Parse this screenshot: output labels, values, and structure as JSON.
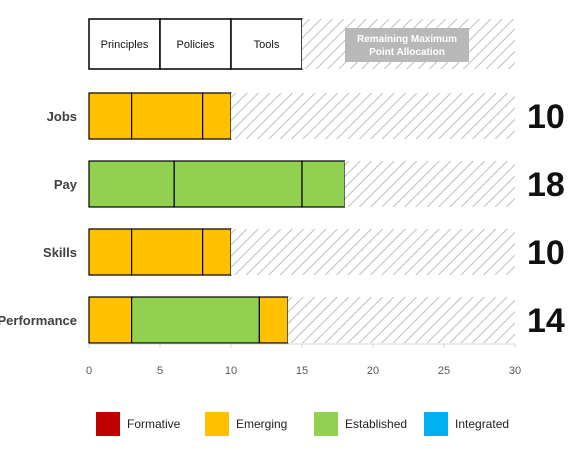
{
  "chart_data": {
    "type": "bar",
    "orientation": "horizontal",
    "stacked": true,
    "xlim": [
      0,
      30
    ],
    "xticks": [
      "0",
      "5",
      "10",
      "15",
      "20",
      "25",
      "30"
    ],
    "header": {
      "segments": [
        {
          "label": "Principles",
          "start": 0,
          "end": 5
        },
        {
          "label": "Policies",
          "start": 5,
          "end": 10
        },
        {
          "label": "Tools",
          "start": 10,
          "end": 15
        }
      ],
      "remaining_label_line1": "Remaining Maximum",
      "remaining_label_line2": "Point Allocation",
      "max": 30
    },
    "categories": [
      {
        "name": "Jobs",
        "total": "10",
        "level": "Emerging",
        "segments": [
          3,
          5,
          2
        ]
      },
      {
        "name": "Pay",
        "total": "18",
        "level": "Established",
        "segments": [
          6,
          9,
          3
        ]
      },
      {
        "name": "Skills",
        "total": "10",
        "level": "Emerging",
        "segments": [
          3,
          5,
          2
        ]
      },
      {
        "name": "Performance",
        "total": "14",
        "level": "mixed",
        "segments": [
          3,
          9,
          2
        ],
        "segment_levels": [
          "Emerging",
          "Established",
          "Emerging"
        ]
      }
    ],
    "legend": [
      {
        "label": "Formative",
        "color": "#C00000"
      },
      {
        "label": "Emerging",
        "color": "#FFC000"
      },
      {
        "label": "Established",
        "color": "#92D050"
      },
      {
        "label": "Integrated",
        "color": "#00B0F0"
      }
    ],
    "legend_position": "bottom",
    "grid": false
  }
}
